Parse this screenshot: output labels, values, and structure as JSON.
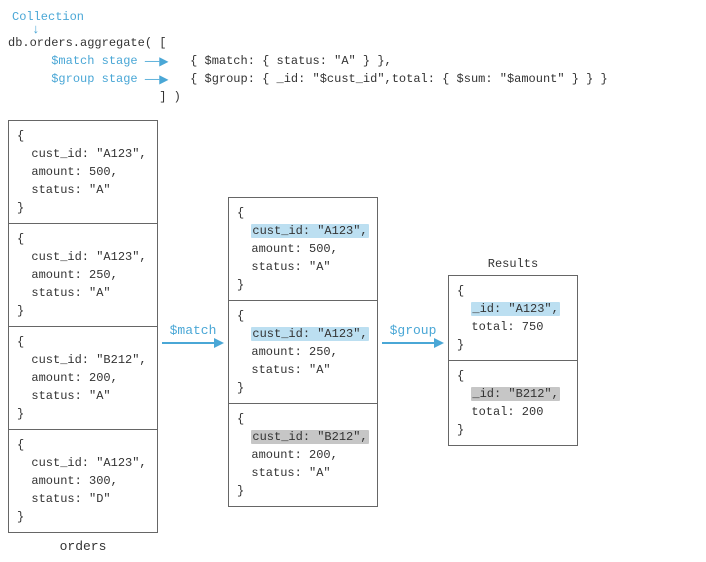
{
  "header": {
    "collection_label": "Collection",
    "code_prefix": "db.orders.aggregate( [",
    "match_stage_label": "$match stage",
    "group_stage_label": "$group stage",
    "match_line": "{ $match: { status: \"A\" } },",
    "group_line": "{ $group: { _id: \"$cust_id\",total: { $sum: \"$amount\" } } }",
    "code_suffix": "] )",
    "label_color": "#4aa7d6"
  },
  "orders": {
    "caption": "orders",
    "docs": [
      {
        "cust_id": "\"A123\"",
        "amount": "500",
        "status": "\"A\""
      },
      {
        "cust_id": "\"A123\"",
        "amount": "250",
        "status": "\"A\""
      },
      {
        "cust_id": "\"B212\"",
        "amount": "200",
        "status": "\"A\""
      },
      {
        "cust_id": "\"A123\"",
        "amount": "300",
        "status": "\"D\""
      }
    ]
  },
  "stage1": {
    "label": "$match",
    "arrow_color": "#4aa7d6"
  },
  "matched": {
    "docs": [
      {
        "cust_id": "\"A123\"",
        "amount": "500",
        "status": "\"A\"",
        "hl": "blue"
      },
      {
        "cust_id": "\"A123\"",
        "amount": "250",
        "status": "\"A\"",
        "hl": "blue"
      },
      {
        "cust_id": "\"B212\"",
        "amount": "200",
        "status": "\"A\"",
        "hl": "gray"
      }
    ]
  },
  "stage2": {
    "label": "$group",
    "arrow_color": "#4aa7d6"
  },
  "results": {
    "caption": "Results",
    "docs": [
      {
        "_id": "\"A123\"",
        "total": "750",
        "hl": "blue"
      },
      {
        "_id": "\"B212\"",
        "total": "200",
        "hl": "gray"
      }
    ]
  },
  "style": {
    "font": "monospace",
    "border_color": "#666666",
    "hl_blue": "#bcdff1",
    "hl_gray": "#c6c6c6",
    "text_color": "#333333",
    "bg": "#ffffff"
  }
}
